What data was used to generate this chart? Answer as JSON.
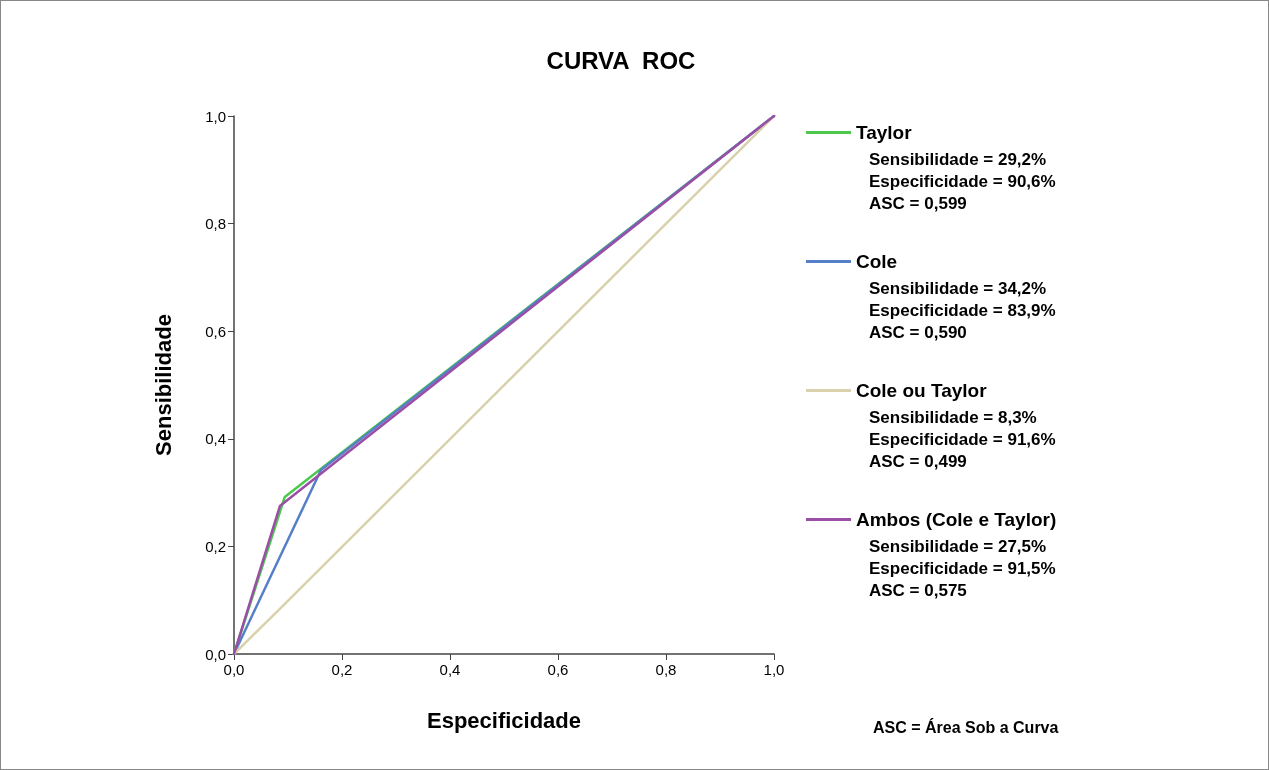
{
  "chart_data": {
    "type": "line",
    "title": "CURVA  ROC",
    "xlabel": "Especificidade",
    "ylabel": "Sensibilidade",
    "xlim": [
      0,
      1
    ],
    "ylim": [
      0,
      1
    ],
    "xticks": [
      {
        "value": 0,
        "label": "0,0"
      },
      {
        "value": 0.2,
        "label": "0,2"
      },
      {
        "value": 0.4,
        "label": "0,4"
      },
      {
        "value": 0.6,
        "label": "0,6"
      },
      {
        "value": 0.8,
        "label": "0,8"
      },
      {
        "value": 1,
        "label": "1,0"
      }
    ],
    "yticks": [
      {
        "value": 0,
        "label": "0,0"
      },
      {
        "value": 0.2,
        "label": "0,2"
      },
      {
        "value": 0.4,
        "label": "0,4"
      },
      {
        "value": 0.6,
        "label": "0,6"
      },
      {
        "value": 0.8,
        "label": "0,8"
      },
      {
        "value": 1,
        "label": "1,0"
      }
    ],
    "series": [
      {
        "name": "Taylor",
        "color": "#4cc94c",
        "x": [
          0,
          0.094,
          1
        ],
        "values": [
          0,
          0.292,
          1
        ]
      },
      {
        "name": "Cole",
        "color": "#5580c8",
        "x": [
          0,
          0.161,
          1
        ],
        "values": [
          0,
          0.342,
          1
        ]
      },
      {
        "name": "Cole ou Taylor",
        "color": "#d8d2ac",
        "x": [
          0,
          0.084,
          1
        ],
        "values": [
          0,
          0.083,
          1
        ]
      },
      {
        "name": "Ambos (Cole e Taylor)",
        "color": "#9a4ea6",
        "x": [
          0,
          0.085,
          1
        ],
        "values": [
          0,
          0.275,
          1
        ]
      }
    ],
    "annotations": [
      "Sensibilidade = 29,2%\nEspecificidade = 90,6%\nASC = 0,599",
      "Sensibilidade = 34,2%\nEspecificidade = 83,9%\nASC = 0,590",
      "Sensibilidade = 8,3%\nEspecificidade = 91,6%\nASC = 0,499",
      "Sensibilidade = 27,5%\nEspecificidade = 91,5%\nASC = 0,575",
      "ASC = Área Sob a Curva"
    ],
    "legend": "right",
    "grid": false,
    "marker": "none",
    "line_style": "solid"
  }
}
